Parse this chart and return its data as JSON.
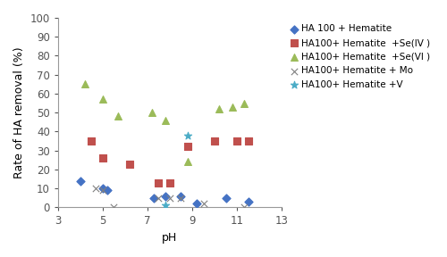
{
  "title": "",
  "xlabel": "pH",
  "ylabel": "Rate of HA removal (%)",
  "xlim": [
    3,
    13
  ],
  "ylim": [
    0,
    100
  ],
  "xticks": [
    3,
    5,
    7,
    9,
    11,
    13
  ],
  "yticks": [
    0,
    10,
    20,
    30,
    40,
    50,
    60,
    70,
    80,
    90,
    100
  ],
  "series": {
    "HA100_hematite": {
      "label": "HA 100 + Hematite",
      "color": "#4472C4",
      "marker": "D",
      "markersize": 22,
      "x": [
        4.0,
        5.0,
        5.2,
        7.3,
        7.8,
        8.5,
        9.2,
        10.5,
        11.5
      ],
      "y": [
        14,
        10,
        9,
        5,
        6,
        6,
        2,
        5,
        3
      ]
    },
    "HA100_hematite_SeIV": {
      "label": "HA100+ Hematite  +Se(IV )",
      "color": "#C0504D",
      "marker": "s",
      "markersize": 28,
      "x": [
        4.5,
        5.0,
        6.2,
        7.5,
        8.0,
        8.8,
        10.0,
        11.0,
        11.5
      ],
      "y": [
        35,
        26,
        23,
        13,
        13,
        32,
        35,
        35,
        35
      ]
    },
    "HA100_hematite_SeVI": {
      "label": "HA100+ Hematite  +Se(VI )",
      "color": "#9BBB59",
      "marker": "^",
      "markersize": 32,
      "x": [
        4.2,
        5.0,
        5.7,
        7.2,
        7.8,
        8.8,
        10.2,
        10.8,
        11.3
      ],
      "y": [
        65,
        57,
        48,
        50,
        46,
        24,
        52,
        53,
        55
      ]
    },
    "HA100_hematite_Mo": {
      "label": "HA100+ Hematite + Mo",
      "color": "#808080",
      "marker": "x",
      "markersize": 28,
      "x": [
        4.7,
        5.0,
        5.5,
        7.5,
        8.0,
        8.5,
        9.5,
        11.3
      ],
      "y": [
        10,
        9,
        0,
        5,
        5,
        5,
        2,
        0
      ]
    },
    "HA100_hematite_V": {
      "label": "HA100+ Hematite +V",
      "color": "#4BACC6",
      "marker": "*",
      "markersize": 38,
      "x": [
        7.8,
        8.8
      ],
      "y": [
        1,
        38
      ]
    }
  },
  "legend_fontsize": 7.5,
  "axis_fontsize": 9,
  "tick_fontsize": 8.5
}
